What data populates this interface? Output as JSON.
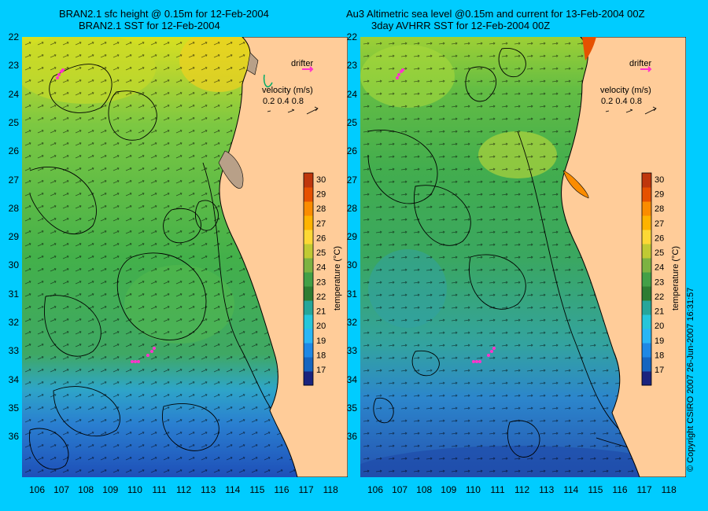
{
  "titles": {
    "left_line1": "BRAN2.1 sfc height @ 0.15m for 12-Feb-2004",
    "left_line2": "BRAN2.1 SST for 12-Feb-2004",
    "right_line1": "Au3 Altimetric sea level  @0.15m and current for 13-Feb-2004 00Z",
    "right_line2": "3day AVHRR SST for 12-Feb-2004 00Z"
  },
  "axes": {
    "lat_labels": [
      "22",
      "23",
      "24",
      "25",
      "26",
      "27",
      "28",
      "29",
      "30",
      "31",
      "32",
      "33",
      "34",
      "35",
      "36"
    ],
    "lon_labels": [
      "106",
      "107",
      "108",
      "109",
      "110",
      "111",
      "112",
      "113",
      "114",
      "115",
      "116",
      "117",
      "118"
    ]
  },
  "legend": {
    "drifter_label": "drifter",
    "velocity_title": "velocity (m/s)",
    "velocity_values": "0.2 0.4 0.8",
    "colorbar_ticks": [
      "30",
      "29",
      "28",
      "27",
      "26",
      "25",
      "24",
      "23",
      "22",
      "21",
      "20",
      "19",
      "18",
      "17"
    ],
    "colorbar_label": "temperature (°C)",
    "colors": {
      "scale": [
        "#1a237e",
        "#1565c0",
        "#1e88e5",
        "#29b6f6",
        "#26c6da",
        "#26a69a",
        "#2e7d32",
        "#43a047",
        "#7cb342",
        "#c0ca33",
        "#fdd835",
        "#ffb300",
        "#fb8c00",
        "#e65100",
        "#bf360c"
      ],
      "land": "#ffcc99",
      "background": "#00ccff",
      "drifter": "#ff33cc"
    }
  },
  "copyright": "© Copyright CSIRO 2007    26-Jun-2007 16:31:57"
}
